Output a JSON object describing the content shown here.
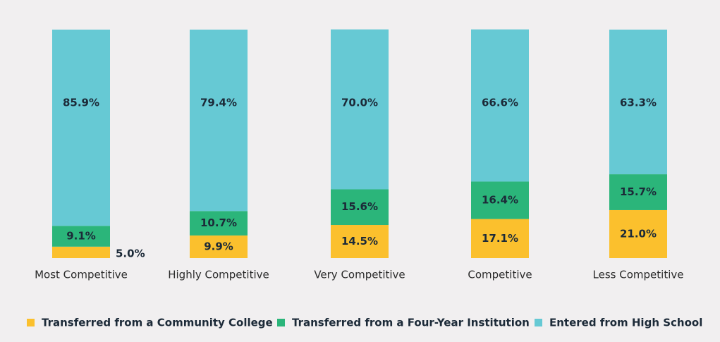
{
  "chart_data": {
    "type": "bar",
    "stacked": true,
    "normalized": true,
    "categories": [
      "Most Competitive",
      "Highly Competitive",
      "Very Competitive",
      "Competitive",
      "Less Competitive"
    ],
    "series": [
      {
        "name": "Transferred from a Community College",
        "color": "#fbc02d",
        "values": [
          5.0,
          9.9,
          14.5,
          17.1,
          21.0
        ],
        "labels": [
          "5.0%",
          "9.9%",
          "14.5%",
          "17.1%",
          "21.0%"
        ]
      },
      {
        "name": "Transferred from a Four-Year Institution",
        "color": "#2bb57a",
        "values": [
          9.1,
          10.7,
          15.6,
          16.4,
          15.7
        ],
        "labels": [
          "9.1%",
          "10.7%",
          "15.6%",
          "16.4%",
          "15.7%"
        ]
      },
      {
        "name": "Entered from High School",
        "color": "#66c9d4",
        "values": [
          85.9,
          79.4,
          70.0,
          66.6,
          63.3
        ],
        "labels": [
          "85.9%",
          "79.4%",
          "70.0%",
          "66.6%",
          "63.3%"
        ]
      }
    ],
    "ylim": [
      0,
      100
    ],
    "grid": false,
    "legend_position": "bottom",
    "title": "",
    "xlabel": "",
    "ylabel": ""
  }
}
